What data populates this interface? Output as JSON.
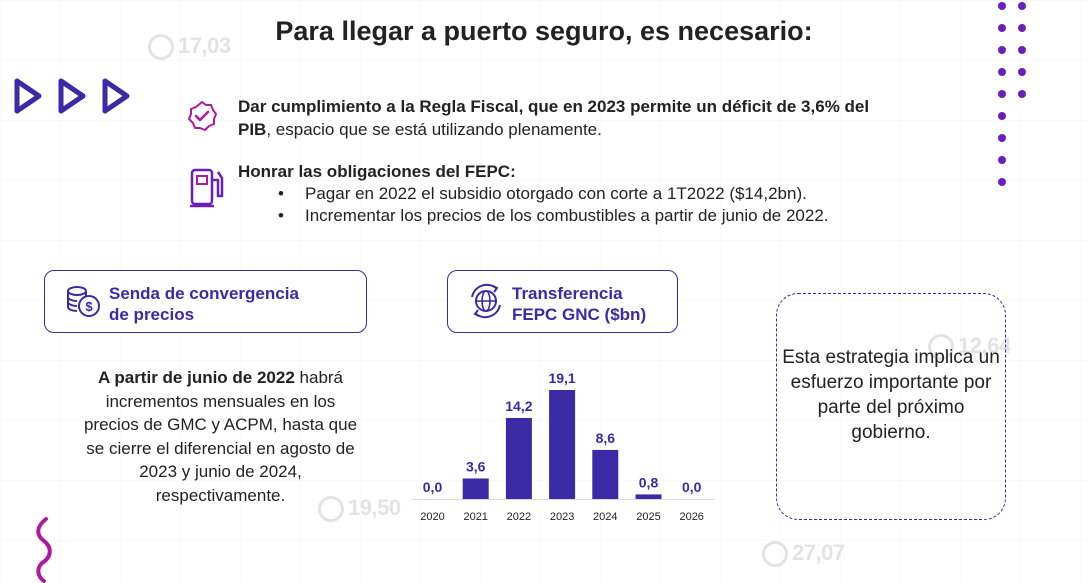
{
  "title": "Para llegar a puerto seguro, es necesario:",
  "colors": {
    "accent": "#3a2aa5",
    "dots": "#6a1fb8",
    "squiggle": "#b0189e"
  },
  "watermarks": [
    "17,03",
    "12,64",
    "19,50",
    "27,07"
  ],
  "item1": {
    "bold": "Dar cumplimiento a la Regla Fiscal, que en 2023 permite un déficit de 3,6% del PIB",
    "rest": ", espacio que se está utilizando plenamente."
  },
  "item2": {
    "title": "Honrar las obligaciones del FEPC:",
    "bullets": [
      "Pagar en 2022 el subsidio otorgado con corte a 1T2022 ($14,2bn).",
      "Incrementar los precios de los combustibles a partir de junio de 2022."
    ]
  },
  "pill1": {
    "icon": "coins-dollar-icon",
    "line1": "Senda de convergencia",
    "line2": "de precios"
  },
  "pill2": {
    "icon": "globe-transfer-icon",
    "line1": "Transferencia",
    "line2": "FEPC GNC ($bn)"
  },
  "left_paragraph": {
    "bold": "A partir de junio de 2022",
    "rest": "habrá incrementos mensuales en los precios de GMC y ACPM, hasta que se cierre el diferencial en agosto de 2023 y junio de 2024, respectivamente."
  },
  "callout": "Esta estrategia implica un esfuerzo importante por parte del próximo gobierno.",
  "chart_data": {
    "type": "bar",
    "title": "Transferencia FEPC GNC ($bn)",
    "categories": [
      "2020",
      "2021",
      "2022",
      "2023",
      "2024",
      "2025",
      "2026"
    ],
    "values": [
      0.0,
      3.6,
      14.2,
      19.1,
      8.6,
      0.8,
      0.0
    ],
    "labels": [
      "0,0",
      "3,6",
      "14,2",
      "19,1",
      "8,6",
      "0,8",
      "0,0"
    ],
    "ylim": [
      0,
      19.1
    ],
    "color": "#3a2aa5",
    "grid": false
  }
}
